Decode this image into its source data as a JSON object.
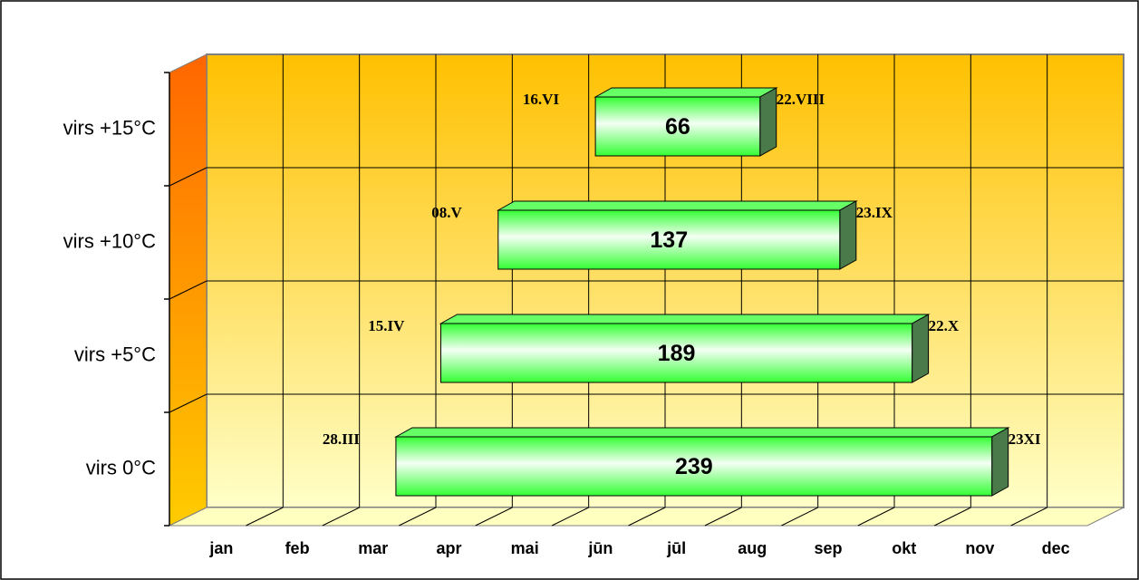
{
  "chart_data": {
    "type": "bar",
    "orientation": "horizontal",
    "categories": [
      "virs 0°C",
      "virs +5°C",
      "virs +10°C",
      "virs +15°C"
    ],
    "months": [
      "jan",
      "feb",
      "mar",
      "apr",
      "mai",
      "jūn",
      "jūl",
      "aug",
      "sep",
      "okt",
      "nov",
      "dec"
    ],
    "values": [
      239,
      189,
      137,
      66
    ],
    "starts": [
      87,
      105,
      128,
      167
    ],
    "start_labels": [
      "28.III",
      "15.IV",
      "08.V",
      "16.VI"
    ],
    "end_labels": [
      "23XI",
      "22.X",
      "23.IX",
      "22.VIII"
    ],
    "xlim": [
      0,
      365
    ],
    "color": "#33ff33",
    "grid": true
  }
}
